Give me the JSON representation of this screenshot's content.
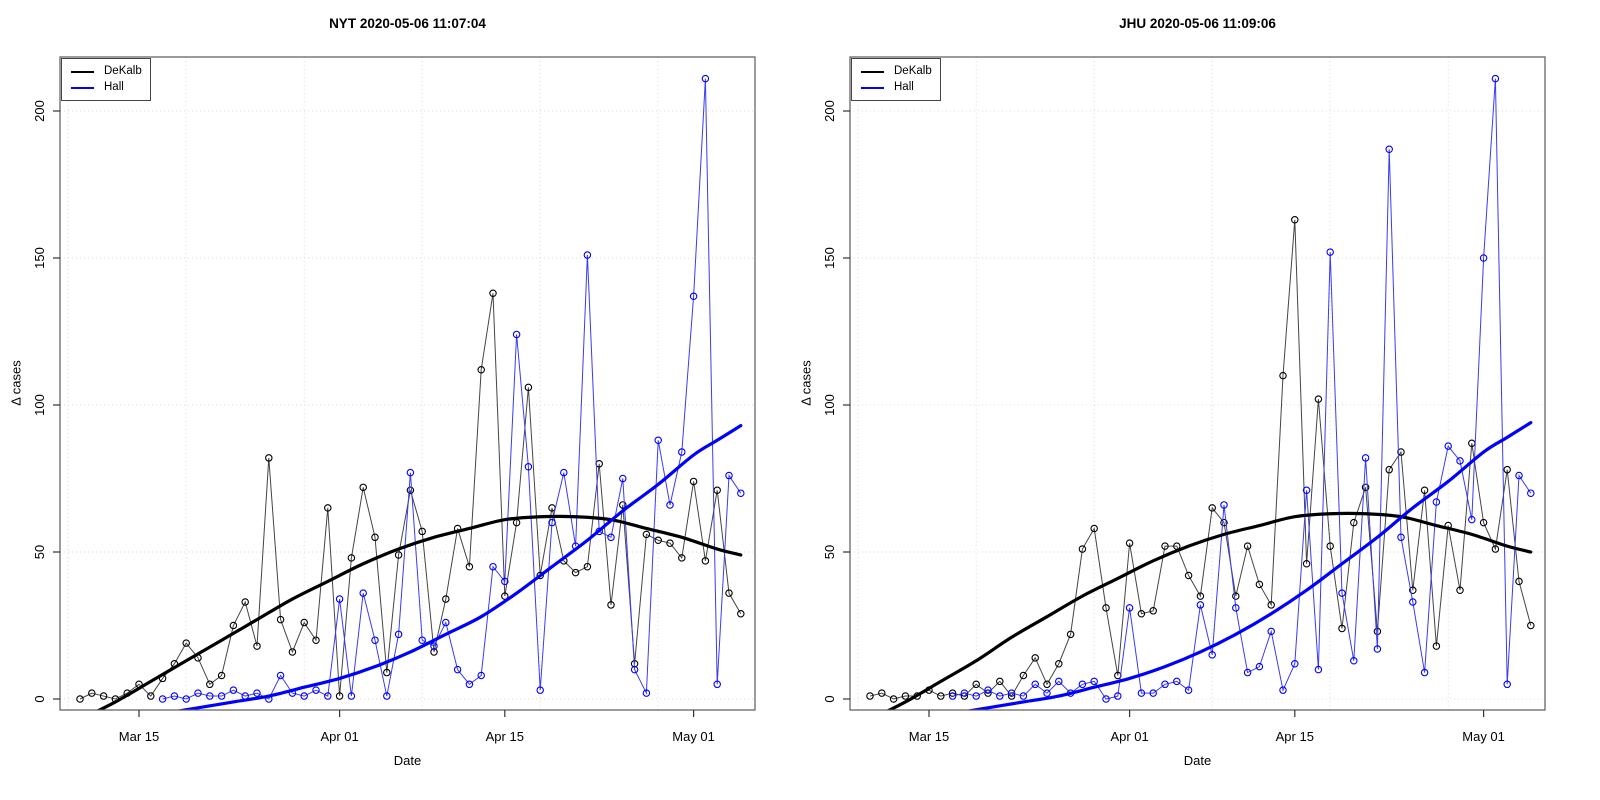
{
  "figure": {
    "background": "#ffffff",
    "box_color": "#595959",
    "grid_color": "#d9d9d9",
    "tick_color": "#333333"
  },
  "chart_data": [
    {
      "type": "line",
      "title": "NYT 2020-05-06 11:07:04",
      "xlabel": "Date",
      "ylabel": "Δ cases",
      "y_ticks": [
        0,
        50,
        100,
        150,
        200
      ],
      "x_ticks": [
        {
          "label": "Mar 15",
          "date": "2020-03-15"
        },
        {
          "label": "Apr 01",
          "date": "2020-04-01"
        },
        {
          "label": "Apr 15",
          "date": "2020-04-15"
        },
        {
          "label": "May 01",
          "date": "2020-05-01"
        }
      ],
      "grid": {
        "v_dates": [
          "2020-03-09",
          "2020-03-19",
          "2020-03-29",
          "2020-04-08",
          "2020-04-18",
          "2020-04-28"
        ],
        "h_values": [
          0,
          50,
          100,
          150,
          200
        ]
      },
      "ylim": [
        -15,
        218
      ],
      "legend": {
        "position": "top-left",
        "items": [
          {
            "label": "DeKalb",
            "color": "#000000"
          },
          {
            "label": "Hall",
            "color": "#0000ff"
          }
        ]
      },
      "dates": [
        "2020-03-10",
        "2020-03-11",
        "2020-03-12",
        "2020-03-13",
        "2020-03-14",
        "2020-03-15",
        "2020-03-16",
        "2020-03-17",
        "2020-03-18",
        "2020-03-19",
        "2020-03-20",
        "2020-03-21",
        "2020-03-22",
        "2020-03-23",
        "2020-03-24",
        "2020-03-25",
        "2020-03-26",
        "2020-03-27",
        "2020-03-28",
        "2020-03-29",
        "2020-03-30",
        "2020-03-31",
        "2020-04-01",
        "2020-04-02",
        "2020-04-03",
        "2020-04-04",
        "2020-04-05",
        "2020-04-06",
        "2020-04-07",
        "2020-04-08",
        "2020-04-09",
        "2020-04-10",
        "2020-04-11",
        "2020-04-12",
        "2020-04-13",
        "2020-04-14",
        "2020-04-15",
        "2020-04-16",
        "2020-04-17",
        "2020-04-18",
        "2020-04-19",
        "2020-04-20",
        "2020-04-21",
        "2020-04-22",
        "2020-04-23",
        "2020-04-24",
        "2020-04-25",
        "2020-04-26",
        "2020-04-27",
        "2020-04-28",
        "2020-04-29",
        "2020-04-30",
        "2020-05-01",
        "2020-05-02",
        "2020-05-03",
        "2020-05-04",
        "2020-05-05"
      ],
      "series": [
        {
          "name": "DeKalb",
          "color": "#000000",
          "values": [
            0,
            2,
            1,
            0,
            2,
            5,
            1,
            7,
            12,
            19,
            14,
            5,
            8,
            25,
            33,
            18,
            82,
            27,
            16,
            26,
            20,
            65,
            1,
            48,
            72,
            55,
            9,
            49,
            71,
            57,
            16,
            34,
            58,
            45,
            112,
            138,
            35,
            60,
            106,
            42,
            65,
            47,
            43,
            45,
            80,
            32,
            66,
            12,
            56,
            54,
            53,
            48,
            74,
            47,
            71,
            36,
            29
          ]
        },
        {
          "name": "Hall",
          "color": "#0000ff",
          "values": [
            null,
            null,
            null,
            null,
            null,
            null,
            null,
            0,
            1,
            0,
            2,
            1,
            1,
            3,
            1,
            2,
            0,
            8,
            2,
            1,
            3,
            1,
            34,
            1,
            36,
            20,
            1,
            22,
            77,
            20,
            18,
            26,
            10,
            5,
            8,
            45,
            40,
            124,
            79,
            3,
            60,
            77,
            52,
            151,
            57,
            55,
            75,
            10,
            2,
            88,
            66,
            84,
            137,
            211,
            5,
            76,
            70
          ]
        }
      ],
      "smooth": [
        {
          "name": "DeKalb trend",
          "color": "#000000",
          "points": [
            [
              0,
              -7
            ],
            [
              3,
              -1
            ],
            [
              6,
              6
            ],
            [
              9,
              13
            ],
            [
              12,
              20
            ],
            [
              15,
              27
            ],
            [
              18,
              34
            ],
            [
              21,
              40
            ],
            [
              24,
              46
            ],
            [
              27,
              51
            ],
            [
              30,
              55
            ],
            [
              33,
              58
            ],
            [
              36,
              61
            ],
            [
              39,
              62
            ],
            [
              42,
              62
            ],
            [
              45,
              61
            ],
            [
              48,
              58
            ],
            [
              51,
              55
            ],
            [
              54,
              51
            ],
            [
              56,
              49
            ]
          ]
        },
        {
          "name": "Hall trend",
          "color": "#0000ff",
          "points": [
            [
              7,
              -5
            ],
            [
              10,
              -3
            ],
            [
              13,
              -1
            ],
            [
              16,
              1
            ],
            [
              19,
              4
            ],
            [
              22,
              7
            ],
            [
              25,
              11
            ],
            [
              28,
              16
            ],
            [
              31,
              22
            ],
            [
              34,
              28
            ],
            [
              37,
              36
            ],
            [
              40,
              45
            ],
            [
              43,
              54
            ],
            [
              46,
              64
            ],
            [
              49,
              73
            ],
            [
              52,
              83
            ],
            [
              54,
              88
            ],
            [
              56,
              93
            ]
          ]
        }
      ]
    },
    {
      "type": "line",
      "title": "JHU 2020-05-06 11:09:06",
      "xlabel": "Date",
      "ylabel": "Δ cases",
      "y_ticks": [
        0,
        50,
        100,
        150,
        200
      ],
      "x_ticks": [
        {
          "label": "Mar 15",
          "date": "2020-03-15"
        },
        {
          "label": "Apr 01",
          "date": "2020-04-01"
        },
        {
          "label": "Apr 15",
          "date": "2020-04-15"
        },
        {
          "label": "May 01",
          "date": "2020-05-01"
        }
      ],
      "grid": {
        "v_dates": [
          "2020-03-09",
          "2020-03-19",
          "2020-03-29",
          "2020-04-08",
          "2020-04-18",
          "2020-04-28"
        ],
        "h_values": [
          0,
          50,
          100,
          150,
          200
        ]
      },
      "ylim": [
        -15,
        218
      ],
      "legend": {
        "position": "top-left",
        "items": [
          {
            "label": "DeKalb",
            "color": "#000000"
          },
          {
            "label": "Hall",
            "color": "#0000ff"
          }
        ]
      },
      "dates": [
        "2020-03-10",
        "2020-03-11",
        "2020-03-12",
        "2020-03-13",
        "2020-03-14",
        "2020-03-15",
        "2020-03-16",
        "2020-03-17",
        "2020-03-18",
        "2020-03-19",
        "2020-03-20",
        "2020-03-21",
        "2020-03-22",
        "2020-03-23",
        "2020-03-24",
        "2020-03-25",
        "2020-03-26",
        "2020-03-27",
        "2020-03-28",
        "2020-03-29",
        "2020-03-30",
        "2020-03-31",
        "2020-04-01",
        "2020-04-02",
        "2020-04-03",
        "2020-04-04",
        "2020-04-05",
        "2020-04-06",
        "2020-04-07",
        "2020-04-08",
        "2020-04-09",
        "2020-04-10",
        "2020-04-11",
        "2020-04-12",
        "2020-04-13",
        "2020-04-14",
        "2020-04-15",
        "2020-04-16",
        "2020-04-17",
        "2020-04-18",
        "2020-04-19",
        "2020-04-20",
        "2020-04-21",
        "2020-04-22",
        "2020-04-23",
        "2020-04-24",
        "2020-04-25",
        "2020-04-26",
        "2020-04-27",
        "2020-04-28",
        "2020-04-29",
        "2020-04-30",
        "2020-05-01",
        "2020-05-02",
        "2020-05-03",
        "2020-05-04",
        "2020-05-05"
      ],
      "series": [
        {
          "name": "DeKalb",
          "color": "#000000",
          "values": [
            1,
            2,
            0,
            1,
            1,
            3,
            1,
            2,
            1,
            5,
            2,
            6,
            1,
            8,
            14,
            5,
            12,
            22,
            51,
            58,
            31,
            8,
            53,
            29,
            30,
            52,
            52,
            42,
            35,
            65,
            60,
            35,
            52,
            39,
            32,
            110,
            163,
            46,
            102,
            52,
            24,
            60,
            72,
            23,
            78,
            84,
            37,
            71,
            18,
            59,
            37,
            87,
            60,
            51,
            78,
            40,
            25
          ]
        },
        {
          "name": "Hall",
          "color": "#0000ff",
          "values": [
            null,
            null,
            null,
            null,
            null,
            null,
            null,
            1,
            2,
            1,
            3,
            1,
            2,
            1,
            5,
            2,
            6,
            2,
            5,
            6,
            0,
            1,
            31,
            2,
            2,
            5,
            6,
            3,
            32,
            15,
            66,
            31,
            9,
            11,
            23,
            3,
            12,
            71,
            10,
            152,
            36,
            13,
            82,
            17,
            187,
            55,
            33,
            9,
            67,
            86,
            81,
            61,
            150,
            211,
            5,
            76,
            70
          ]
        }
      ],
      "smooth": [
        {
          "name": "DeKalb trend",
          "color": "#000000",
          "points": [
            [
              0,
              -7
            ],
            [
              3,
              -1
            ],
            [
              6,
              6
            ],
            [
              9,
              13
            ],
            [
              12,
              21
            ],
            [
              15,
              28
            ],
            [
              18,
              35
            ],
            [
              21,
              41
            ],
            [
              24,
              47
            ],
            [
              27,
              52
            ],
            [
              30,
              56
            ],
            [
              33,
              59
            ],
            [
              36,
              62
            ],
            [
              39,
              63
            ],
            [
              42,
              63
            ],
            [
              45,
              62
            ],
            [
              48,
              59
            ],
            [
              51,
              56
            ],
            [
              54,
              52
            ],
            [
              56,
              50
            ]
          ]
        },
        {
          "name": "Hall trend",
          "color": "#0000ff",
          "points": [
            [
              7,
              -5
            ],
            [
              10,
              -3
            ],
            [
              13,
              -1
            ],
            [
              16,
              1
            ],
            [
              19,
              4
            ],
            [
              22,
              7
            ],
            [
              25,
              11
            ],
            [
              28,
              16
            ],
            [
              31,
              22
            ],
            [
              34,
              29
            ],
            [
              37,
              37
            ],
            [
              40,
              46
            ],
            [
              43,
              55
            ],
            [
              46,
              65
            ],
            [
              49,
              74
            ],
            [
              52,
              84
            ],
            [
              54,
              89
            ],
            [
              56,
              94
            ]
          ]
        }
      ]
    }
  ]
}
